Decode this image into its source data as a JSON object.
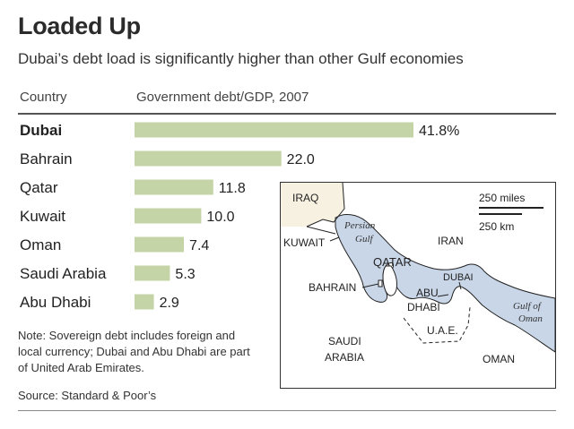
{
  "header": {
    "title": "Loaded Up",
    "subtitle": "Dubai’s debt load is significantly higher than other Gulf economies"
  },
  "table_header": {
    "country_label": "Country",
    "metric_label": "Government debt/GDP, 2007"
  },
  "chart_data": {
    "type": "bar",
    "orientation": "horizontal",
    "title": "Loaded Up",
    "subtitle": "Dubai’s debt load is significantly higher than other Gulf economies",
    "xlabel": "Government debt/GDP, 2007",
    "ylabel": "Country",
    "categories": [
      "Dubai",
      "Bahrain",
      "Qatar",
      "Kuwait",
      "Oman",
      "Saudi Arabia",
      "Abu Dhabi"
    ],
    "values": [
      41.8,
      22.0,
      11.8,
      10.0,
      7.4,
      5.3,
      2.9
    ],
    "value_labels": [
      "41.8%",
      "22.0",
      "11.8",
      "10.0",
      "7.4",
      "5.3",
      "2.9"
    ],
    "bar_color": "#c5d4a6",
    "xlim": [
      0,
      41.8
    ]
  },
  "map": {
    "labels": {
      "iraq": "IRAQ",
      "kuwait": "KUWAIT",
      "persian_gulf_1": "Persian",
      "persian_gulf_2": "Gulf",
      "iran": "IRAN",
      "qatar": "QATAR",
      "dubai": "DUBAI",
      "bahrain": "BAHRAIN",
      "abu": "ABU",
      "dhabi": "DHABI",
      "uae": "U.A.E.",
      "gulf_of_oman_1": "Gulf of",
      "gulf_of_oman_2": "Oman",
      "saudi": "SAUDI",
      "arabia": "ARABIA",
      "oman": "OMAN",
      "scale_miles": "250 miles",
      "scale_km": "250 km"
    },
    "colors": {
      "water": "#c9d6e8",
      "land": "#ffffff",
      "iraq_land": "#f6f1e1",
      "border": "#222222"
    }
  },
  "footer": {
    "note": "Note: Sovereign debt includes foreign and local currency; Dubai and Abu Dhabi are part of United Arab Emirates.",
    "source": "Source: Standard & Poor’s"
  }
}
